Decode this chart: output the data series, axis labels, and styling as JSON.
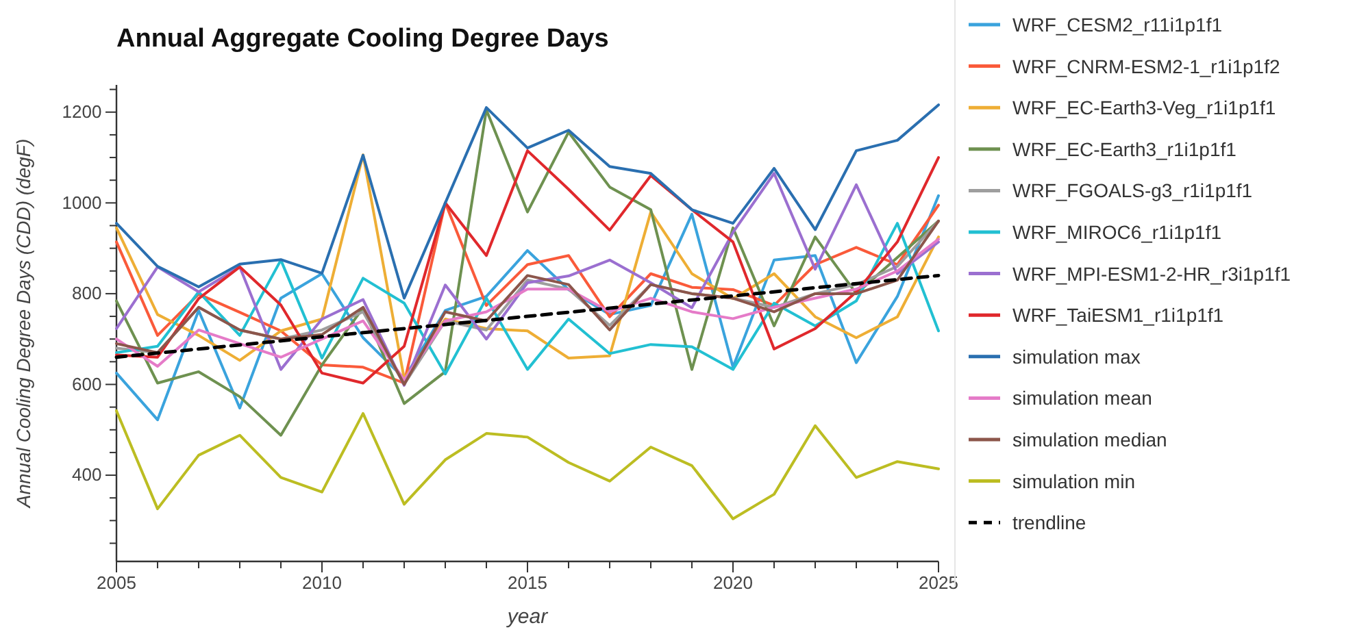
{
  "chart_data": {
    "type": "line",
    "title": "Annual Aggregate Cooling Degree Days",
    "xlabel": "year",
    "ylabel": "Annual Cooling Degree Days (CDD) (degF)",
    "x": [
      2005,
      2006,
      2007,
      2008,
      2009,
      2010,
      2011,
      2012,
      2013,
      2014,
      2015,
      2016,
      2017,
      2018,
      2019,
      2020,
      2021,
      2022,
      2023,
      2024,
      2025
    ],
    "xlim": [
      2005,
      2025
    ],
    "xticks": [
      2005,
      {
        "value": 2006,
        "label": null
      },
      {
        "value": 2007,
        "label": null
      },
      {
        "value": 2008,
        "label": null
      },
      {
        "value": 2009,
        "label": null
      },
      2010,
      {
        "value": 2011,
        "label": null
      },
      {
        "value": 2012,
        "label": null
      },
      {
        "value": 2013,
        "label": null
      },
      {
        "value": 2014,
        "label": null
      },
      2015,
      {
        "value": 2016,
        "label": null
      },
      {
        "value": 2017,
        "label": null
      },
      {
        "value": 2018,
        "label": null
      },
      {
        "value": 2019,
        "label": null
      },
      2020,
      {
        "value": 2021,
        "label": null
      },
      {
        "value": 2022,
        "label": null
      },
      {
        "value": 2023,
        "label": null
      },
      {
        "value": 2024,
        "label": null
      },
      2025
    ],
    "ylim": [
      210,
      1260
    ],
    "yticks": [
      {
        "value": 250,
        "label": null
      },
      {
        "value": 300,
        "label": null
      },
      {
        "value": 350,
        "label": null
      },
      400,
      {
        "value": 450,
        "label": null
      },
      {
        "value": 500,
        "label": null
      },
      {
        "value": 550,
        "label": null
      },
      600,
      {
        "value": 650,
        "label": null
      },
      {
        "value": 700,
        "label": null
      },
      {
        "value": 750,
        "label": null
      },
      800,
      {
        "value": 850,
        "label": null
      },
      {
        "value": 900,
        "label": null
      },
      {
        "value": 950,
        "label": null
      },
      1000,
      {
        "value": 1050,
        "label": null
      },
      {
        "value": 1100,
        "label": null
      },
      {
        "value": 1150,
        "label": null
      },
      1200,
      {
        "value": 1250,
        "label": null
      }
    ],
    "grid": false,
    "legend": "right",
    "series": [
      {
        "name": "WRF_CESM2_r11i1p1f1",
        "color": "#3aa3dd",
        "values": [
          625,
          522,
          763,
          548,
          790,
          844,
          703,
          613,
          763,
          794,
          895,
          809,
          754,
          774,
          975,
          638,
          874,
          884,
          648,
          794,
          1016
        ]
      },
      {
        "name": "WRF_CNRM-ESM2-1_r1i1p1f2",
        "color": "#fa5a3a",
        "values": [
          914,
          708,
          799,
          759,
          718,
          643,
          638,
          603,
          1000,
          774,
          864,
          884,
          749,
          844,
          814,
          809,
          774,
          864,
          902,
          864,
          995
        ]
      },
      {
        "name": "WRF_EC-Earth3-Veg_r1i1p1f1",
        "color": "#eeae35",
        "values": [
          945,
          754,
          708,
          653,
          718,
          744,
          1106,
          613,
          744,
          723,
          718,
          658,
          663,
          980,
          844,
          789,
          844,
          749,
          703,
          749,
          925
        ]
      },
      {
        "name": "WRF_EC-Earth3_r1i1p1f1",
        "color": "#6e9150",
        "values": [
          784,
          603,
          628,
          573,
          488,
          643,
          769,
          558,
          628,
          1205,
          980,
          1156,
          1035,
          985,
          633,
          945,
          729,
          925,
          800,
          880,
          960
        ]
      },
      {
        "name": "WRF_FGOALS-g3_r1i1p1f1",
        "color": "#9e9e9e",
        "values": [
          680,
          670,
          770,
          720,
          700,
          720,
          760,
          600,
          740,
          720,
          830,
          810,
          730,
          820,
          800,
          790,
          770,
          800,
          820,
          860,
          960
        ]
      },
      {
        "name": "WRF_MIROC6_r1i1p1f1",
        "color": "#22c0d2",
        "values": [
          670,
          684,
          804,
          708,
          874,
          658,
          834,
          779,
          623,
          790,
          633,
          744,
          668,
          688,
          683,
          633,
          779,
          729,
          784,
          955,
          718
        ]
      },
      {
        "name": "WRF_MPI-ESM1-2-HR_r3i1p1f1",
        "color": "#9b6fd0",
        "values": [
          723,
          859,
          804,
          859,
          633,
          744,
          787,
          598,
          819,
          700,
          824,
          839,
          874,
          824,
          769,
          935,
          1065,
          854,
          1040,
          844,
          914
        ]
      },
      {
        "name": "WRF_TaiESM1_r1i1p1f1",
        "color": "#e0282c",
        "values": [
          665,
          660,
          789,
          859,
          775,
          625,
          603,
          684,
          1000,
          884,
          1115,
          1030,
          940,
          1060,
          985,
          914,
          678,
          723,
          804,
          914,
          1100
        ]
      },
      {
        "name": "simulation max",
        "color": "#2a6fb0",
        "values": [
          955,
          860,
          815,
          865,
          875,
          845,
          1105,
          790,
          1000,
          1210,
          1121,
          1160,
          1080,
          1065,
          985,
          955,
          1076,
          941,
          1115,
          1138,
          1216
        ]
      },
      {
        "name": "simulation mean",
        "color": "#e57bc8",
        "values": [
          700,
          640,
          720,
          690,
          660,
          700,
          740,
          610,
          740,
          760,
          810,
          810,
          760,
          790,
          760,
          745,
          770,
          790,
          810,
          850,
          920
        ]
      },
      {
        "name": "simulation median",
        "color": "#8c564b",
        "values": [
          690,
          670,
          770,
          720,
          700,
          710,
          770,
          600,
          760,
          740,
          840,
          820,
          720,
          820,
          800,
          790,
          760,
          800,
          800,
          830,
          960
        ]
      },
      {
        "name": "simulation min",
        "color": "#bcbd22",
        "values": [
          542,
          326,
          444,
          488,
          395,
          363,
          536,
          336,
          434,
          492,
          484,
          428,
          387,
          462,
          421,
          304,
          358,
          509,
          395,
          430,
          414
        ]
      },
      {
        "name": "trendline",
        "color": "#000000",
        "type": "line",
        "line_style": "dashed",
        "x": [
          2005,
          2025
        ],
        "values": [
          660,
          840
        ]
      }
    ]
  }
}
